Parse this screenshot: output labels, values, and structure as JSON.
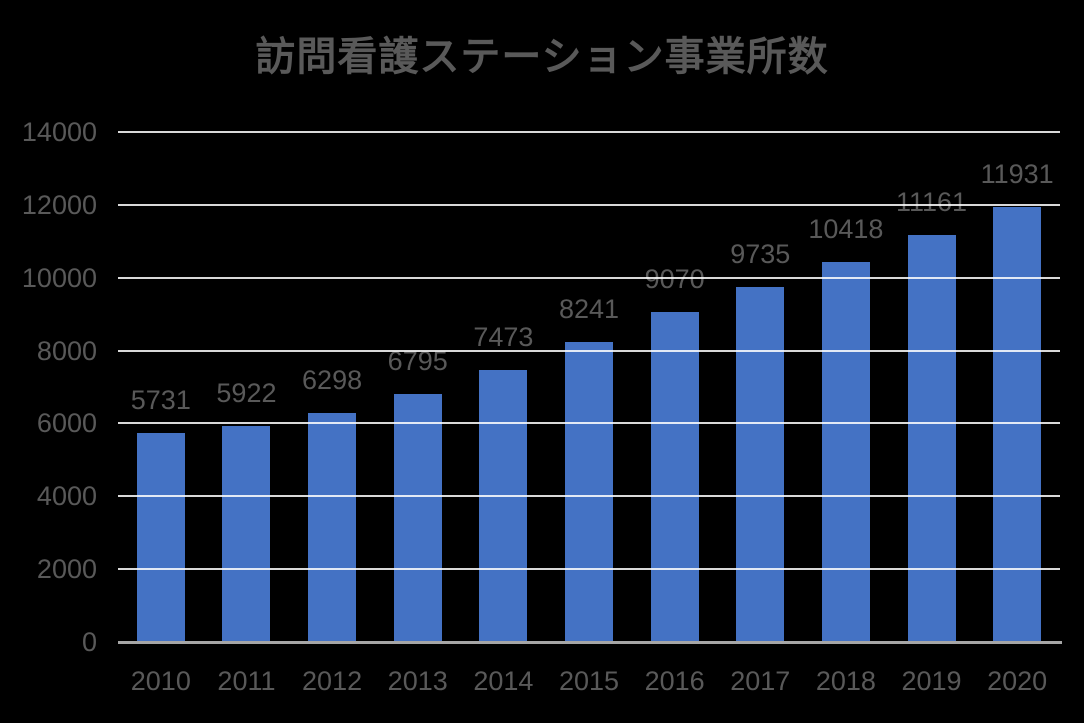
{
  "chart_data": {
    "type": "bar",
    "title": "訪問看護ステーション事業所数",
    "categories": [
      "2010",
      "2011",
      "2012",
      "2013",
      "2014",
      "2015",
      "2016",
      "2017",
      "2018",
      "2019",
      "2020"
    ],
    "values": [
      5731,
      5922,
      6298,
      6795,
      7473,
      8241,
      9070,
      9735,
      10418,
      11161,
      11931
    ],
    "data_labels": [
      "5731",
      "5922",
      "6298",
      "6795",
      "7473",
      "8241",
      "9070",
      "9735",
      "10418",
      "11161",
      "11931"
    ],
    "xlabel": "",
    "ylabel": "",
    "ylim": [
      0,
      14000
    ],
    "ytick_interval": 2000,
    "yticks": [
      "0",
      "2000",
      "4000",
      "6000",
      "8000",
      "10000",
      "12000",
      "14000"
    ],
    "grid": true,
    "legend": null,
    "colors": {
      "background": "#000000",
      "bar": "#4472C4",
      "gridline": "#FFFFFF",
      "axis_line": "#A6A6A6",
      "text": "#595959"
    }
  }
}
